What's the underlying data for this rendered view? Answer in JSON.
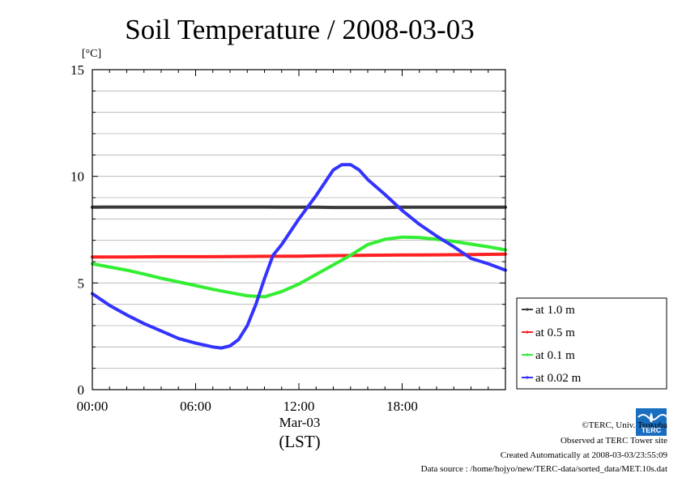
{
  "chart_data": {
    "type": "line",
    "title": "Soil Temperature / 2008-03-03",
    "ylabel": "[°C]",
    "xlabel_date": "Mar-03",
    "xlabel_tz": "(LST)",
    "ylim": [
      0,
      15
    ],
    "xlim_hours": [
      0,
      24
    ],
    "yticks": [
      0,
      5,
      10,
      15
    ],
    "xtick_labels": [
      "00:00",
      "06:00",
      "12:00",
      "18:00"
    ],
    "xtick_hours": [
      0,
      6,
      12,
      18
    ],
    "grid": true,
    "legend_position": "right",
    "series": [
      {
        "name": "at 1.0 m",
        "color": "#3a3a3a",
        "x": [
          0,
          1,
          2,
          3,
          4,
          5,
          6,
          7,
          8,
          9,
          10,
          11,
          12,
          13,
          14,
          15,
          16,
          17,
          18,
          19,
          20,
          21,
          22,
          23,
          24
        ],
        "y": [
          8.55,
          8.56,
          8.56,
          8.56,
          8.56,
          8.56,
          8.56,
          8.56,
          8.56,
          8.56,
          8.56,
          8.55,
          8.55,
          8.55,
          8.54,
          8.54,
          8.54,
          8.54,
          8.55,
          8.55,
          8.55,
          8.55,
          8.55,
          8.55,
          8.55
        ]
      },
      {
        "name": "at 0.5 m",
        "color": "#ff2020",
        "x": [
          0,
          2,
          4,
          6,
          8,
          10,
          12,
          14,
          16,
          18,
          20,
          22,
          24
        ],
        "y": [
          6.22,
          6.22,
          6.23,
          6.23,
          6.24,
          6.25,
          6.26,
          6.28,
          6.3,
          6.31,
          6.32,
          6.33,
          6.35
        ]
      },
      {
        "name": "at 0.1 m",
        "color": "#33ee33",
        "x": [
          0,
          1,
          2,
          3,
          4,
          5,
          6,
          7,
          8,
          9,
          10,
          11,
          12,
          13,
          14,
          15,
          16,
          17,
          18,
          19,
          20,
          21,
          22,
          23,
          24
        ],
        "y": [
          5.9,
          5.75,
          5.6,
          5.42,
          5.22,
          5.05,
          4.88,
          4.7,
          4.55,
          4.4,
          4.35,
          4.6,
          4.95,
          5.4,
          5.85,
          6.3,
          6.8,
          7.05,
          7.15,
          7.13,
          7.05,
          6.95,
          6.82,
          6.7,
          6.55
        ]
      },
      {
        "name": "at 0.02 m",
        "color": "#3333ff",
        "x": [
          0,
          1,
          2,
          3,
          4,
          5,
          6,
          7,
          7.5,
          8,
          8.5,
          9,
          9.5,
          10,
          10.5,
          11,
          12,
          13,
          14,
          14.5,
          15,
          15.5,
          16,
          17,
          18,
          19,
          20,
          21,
          22,
          23,
          24
        ],
        "y": [
          4.5,
          3.95,
          3.5,
          3.1,
          2.75,
          2.4,
          2.18,
          2.0,
          1.95,
          2.05,
          2.35,
          3.0,
          4.0,
          5.2,
          6.3,
          6.8,
          8.0,
          9.1,
          10.3,
          10.55,
          10.55,
          10.3,
          9.85,
          9.15,
          8.4,
          7.75,
          7.2,
          6.7,
          6.15,
          5.9,
          5.6
        ]
      }
    ]
  },
  "footer": {
    "copyright": "©TERC, Univ. Tsukuba",
    "observed": "Observed at TERC Tower site",
    "created": "Created Automatically at 2008-03-03/23:55:09",
    "source": "Data source : /home/hojyo/new/TERC-data/sorted_data/MET.10s.dat"
  },
  "logo": {
    "text": "TERC",
    "color": "#1a6ec0"
  }
}
